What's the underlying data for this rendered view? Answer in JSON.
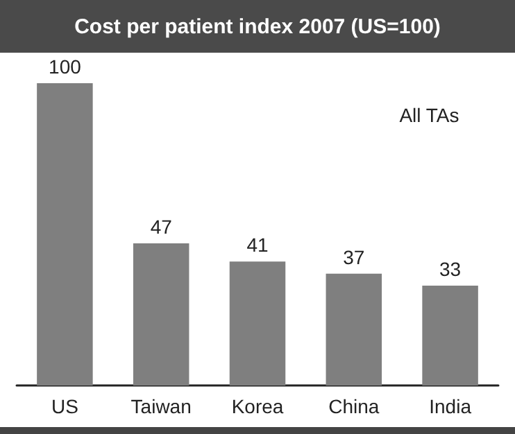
{
  "chart_data": {
    "type": "bar",
    "title": "Cost per patient index 2007 (US=100)",
    "categories": [
      "US",
      "Taiwan",
      "Korea",
      "China",
      "India"
    ],
    "values": [
      100,
      47,
      41,
      37,
      33
    ],
    "color": "#7f7f7f",
    "data_labels": true,
    "annotations": [
      "All TAs"
    ]
  }
}
